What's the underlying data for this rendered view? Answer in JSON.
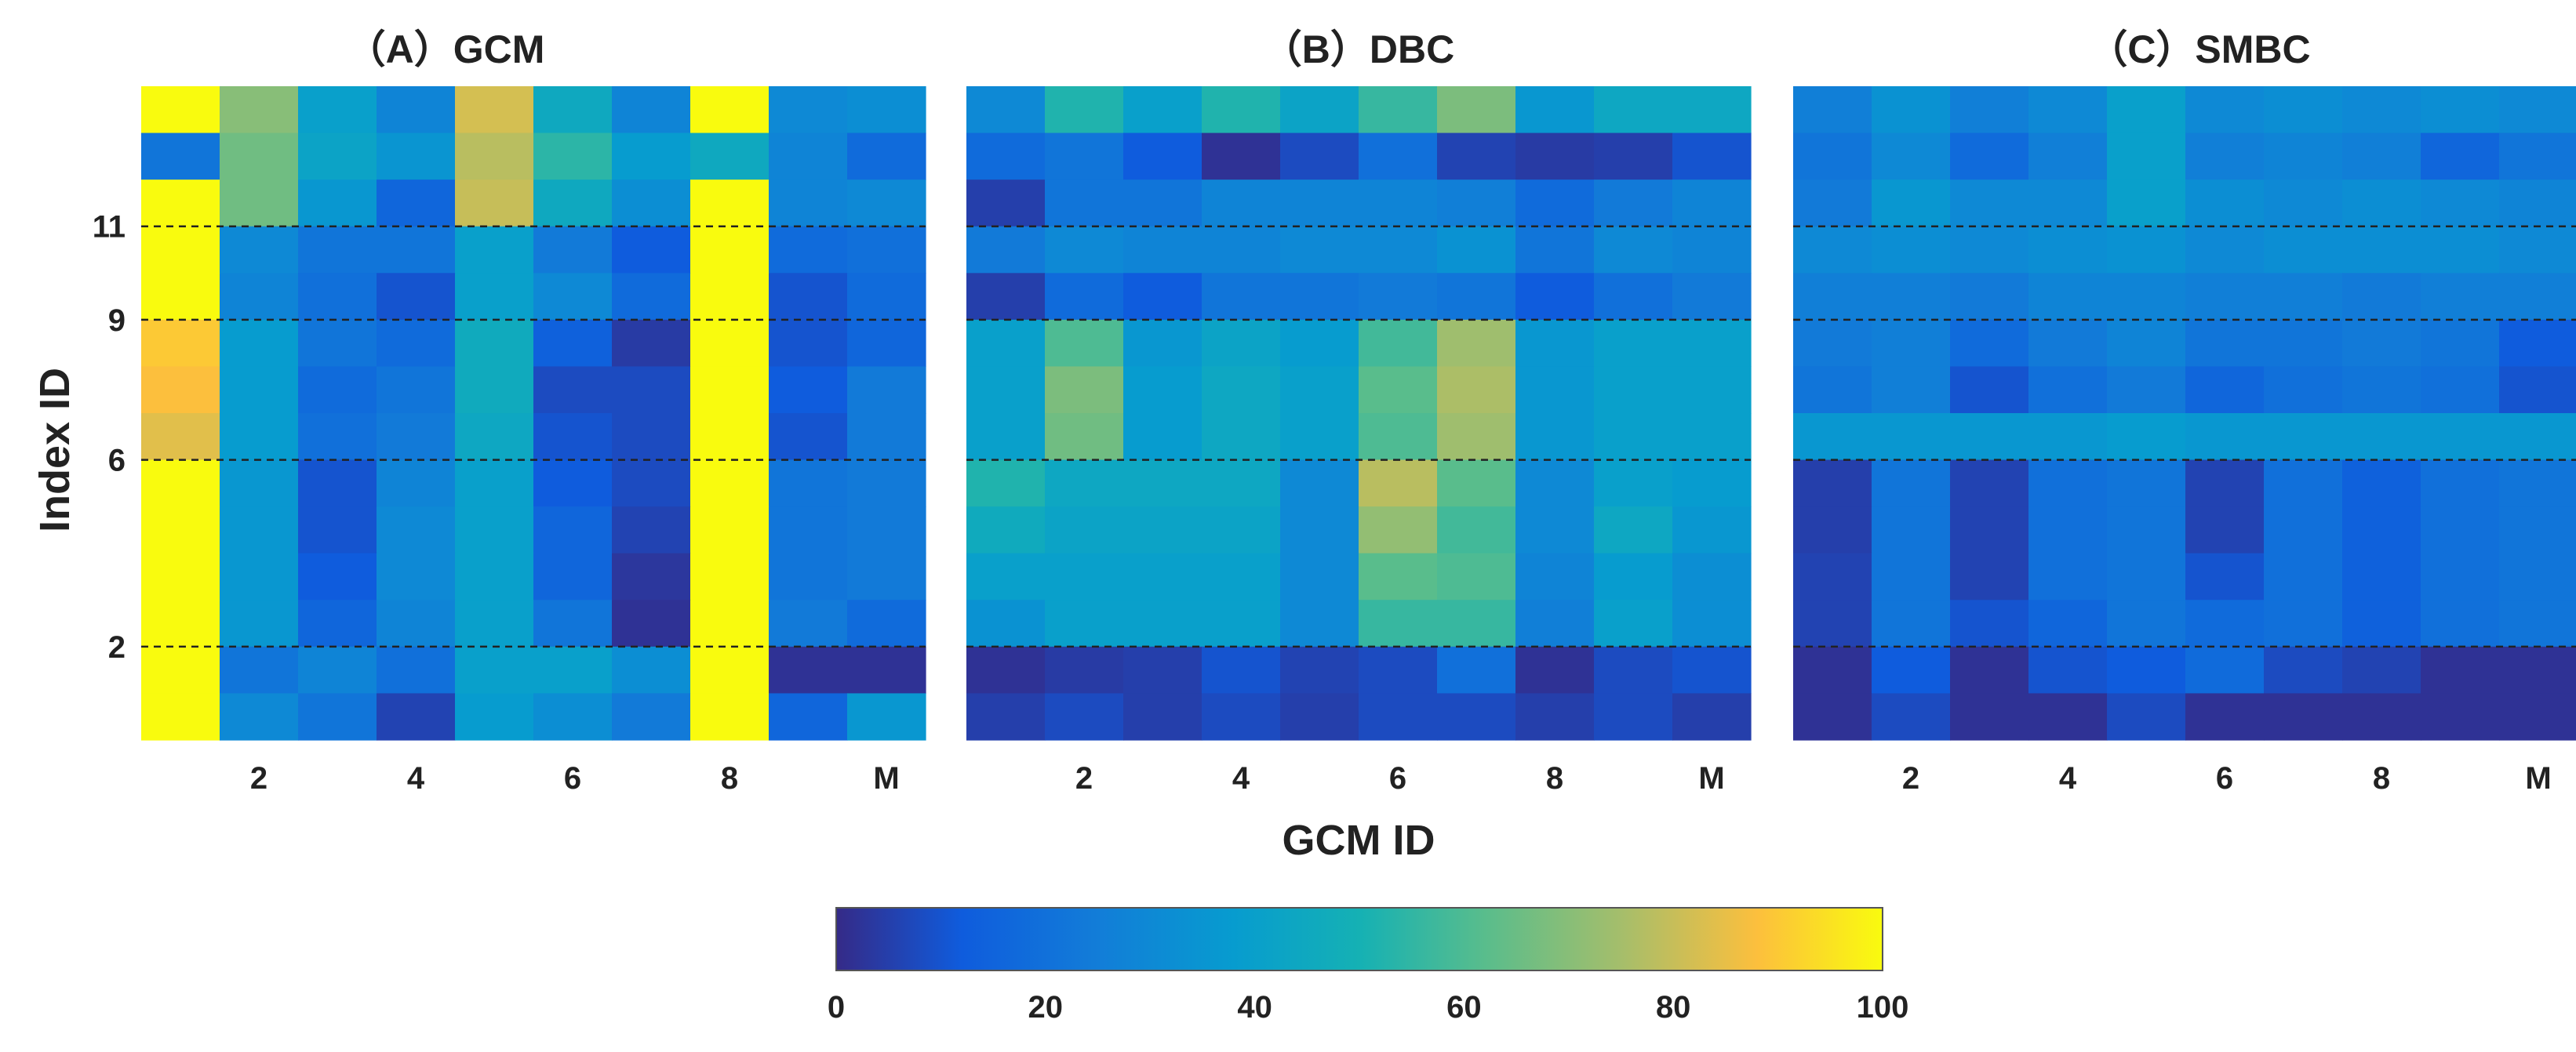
{
  "chart_data": {
    "type": "heatmap",
    "colormap": "parula",
    "colorbar": {
      "min": 0,
      "max": 100,
      "ticks": [
        "0",
        "20",
        "40",
        "60",
        "80",
        "100"
      ]
    },
    "xlabel": "GCM ID",
    "ylabel": "Index ID",
    "x_ticks": [
      {
        "col": 2,
        "label": "2"
      },
      {
        "col": 4,
        "label": "4"
      },
      {
        "col": 6,
        "label": "6"
      },
      {
        "col": 8,
        "label": "8"
      },
      {
        "col": 10,
        "label": "M"
      }
    ],
    "y_ticks": [
      {
        "row": 2,
        "label": "2"
      },
      {
        "row": 6,
        "label": "6"
      },
      {
        "row": 9,
        "label": "9"
      },
      {
        "row": 11,
        "label": "11"
      }
    ],
    "group_boundaries_after_row": [
      2,
      6,
      9,
      11
    ],
    "panels": [
      {
        "title": "（A）GCM",
        "values": [
          [
            100,
            70,
            40,
            28,
            82,
            45,
            28,
            100,
            30,
            32
          ],
          [
            22,
            66,
            42,
            35,
            78,
            54,
            38,
            45,
            28,
            18
          ],
          [
            100,
            66,
            36,
            16,
            80,
            45,
            32,
            100,
            28,
            30
          ],
          [
            100,
            30,
            22,
            22,
            40,
            24,
            12,
            100,
            18,
            20
          ],
          [
            100,
            28,
            20,
            10,
            40,
            30,
            18,
            100,
            10,
            18
          ],
          [
            90,
            38,
            22,
            18,
            46,
            14,
            4,
            100,
            10,
            16
          ],
          [
            88,
            38,
            18,
            22,
            46,
            8,
            8,
            100,
            12,
            24
          ],
          [
            84,
            38,
            20,
            24,
            44,
            10,
            8,
            100,
            10,
            24
          ],
          [
            100,
            36,
            10,
            28,
            40,
            12,
            8,
            100,
            22,
            24
          ],
          [
            100,
            36,
            10,
            30,
            40,
            16,
            6,
            100,
            22,
            24
          ],
          [
            100,
            36,
            12,
            30,
            40,
            16,
            3,
            100,
            22,
            24
          ],
          [
            100,
            36,
            16,
            28,
            40,
            22,
            2,
            100,
            24,
            18
          ],
          [
            100,
            22,
            28,
            20,
            40,
            40,
            32,
            100,
            2,
            2
          ],
          [
            100,
            30,
            22,
            6,
            38,
            32,
            24,
            100,
            16,
            36
          ]
        ]
      },
      {
        "title": "（B）DBC",
        "values": [
          [
            30,
            52,
            40,
            52,
            42,
            56,
            68,
            36,
            44,
            44
          ],
          [
            18,
            22,
            12,
            2,
            8,
            20,
            6,
            4,
            5,
            10
          ],
          [
            5,
            22,
            22,
            28,
            28,
            28,
            26,
            18,
            24,
            28
          ],
          [
            24,
            30,
            28,
            28,
            30,
            30,
            34,
            22,
            30,
            28
          ],
          [
            5,
            18,
            12,
            22,
            22,
            24,
            22,
            12,
            20,
            24
          ],
          [
            40,
            60,
            36,
            42,
            38,
            58,
            74,
            36,
            40,
            40
          ],
          [
            40,
            68,
            38,
            44,
            40,
            62,
            76,
            36,
            40,
            40
          ],
          [
            40,
            66,
            38,
            44,
            40,
            60,
            74,
            36,
            40,
            40
          ],
          [
            52,
            44,
            44,
            44,
            30,
            78,
            62,
            30,
            40,
            38
          ],
          [
            46,
            42,
            42,
            42,
            30,
            72,
            58,
            30,
            44,
            36
          ],
          [
            40,
            40,
            40,
            40,
            30,
            62,
            60,
            28,
            38,
            32
          ],
          [
            34,
            40,
            40,
            40,
            30,
            56,
            56,
            26,
            40,
            32
          ],
          [
            2,
            4,
            5,
            10,
            6,
            8,
            20,
            2,
            8,
            10
          ],
          [
            5,
            8,
            5,
            8,
            5,
            8,
            8,
            5,
            8,
            5
          ]
        ]
      },
      {
        "title": "（C）SMBC",
        "values": [
          [
            26,
            34,
            26,
            30,
            40,
            30,
            32,
            30,
            32,
            30
          ],
          [
            22,
            30,
            18,
            26,
            40,
            26,
            28,
            26,
            16,
            22
          ],
          [
            24,
            36,
            30,
            30,
            40,
            32,
            30,
            32,
            30,
            28
          ],
          [
            30,
            32,
            30,
            32,
            34,
            30,
            32,
            32,
            32,
            30
          ],
          [
            26,
            26,
            24,
            28,
            28,
            26,
            26,
            24,
            26,
            26
          ],
          [
            24,
            26,
            18,
            24,
            28,
            22,
            22,
            24,
            22,
            12
          ],
          [
            22,
            26,
            10,
            20,
            24,
            16,
            20,
            22,
            20,
            10
          ],
          [
            36,
            36,
            36,
            36,
            38,
            36,
            36,
            36,
            36,
            36
          ],
          [
            5,
            22,
            6,
            20,
            22,
            6,
            20,
            14,
            20,
            22
          ],
          [
            5,
            22,
            6,
            20,
            22,
            6,
            20,
            14,
            20,
            22
          ],
          [
            6,
            22,
            6,
            20,
            22,
            10,
            20,
            14,
            20,
            22
          ],
          [
            6,
            22,
            10,
            16,
            22,
            18,
            20,
            14,
            20,
            22
          ],
          [
            2,
            12,
            2,
            10,
            12,
            18,
            8,
            6,
            2,
            2
          ],
          [
            2,
            8,
            2,
            2,
            8,
            2,
            2,
            2,
            2,
            2
          ]
        ]
      }
    ]
  }
}
